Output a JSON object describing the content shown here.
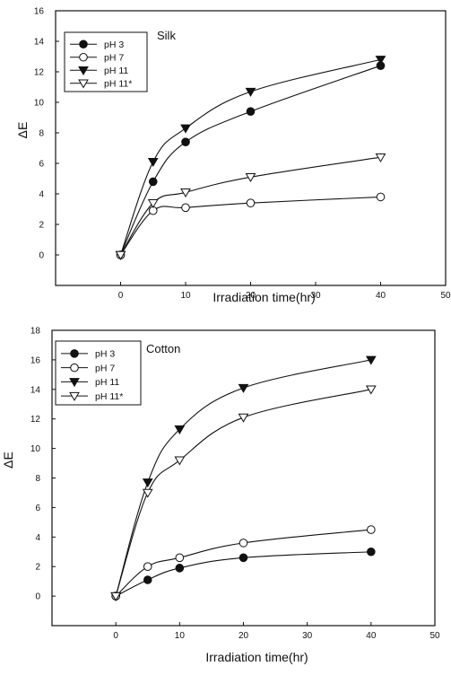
{
  "chart_data": [
    {
      "type": "line",
      "panel_label": "Silk",
      "xlabel": "Irradiation time(hr)",
      "ylabel": "ΔE",
      "xlim": [
        -10,
        50
      ],
      "ylim": [
        -2,
        16
      ],
      "xticks": [
        0,
        10,
        20,
        30,
        40,
        50
      ],
      "yticks": [
        0,
        2,
        4,
        6,
        8,
        10,
        12,
        14,
        16
      ],
      "legend_position": "top-left",
      "series": [
        {
          "name": "pH 3",
          "marker": "filled-circle",
          "x": [
            0,
            5,
            10,
            20,
            40
          ],
          "y": [
            0,
            4.8,
            7.4,
            9.4,
            12.4
          ]
        },
        {
          "name": "pH 7",
          "marker": "open-circle",
          "x": [
            0,
            5,
            10,
            20,
            40
          ],
          "y": [
            0,
            2.9,
            3.1,
            3.4,
            3.8
          ]
        },
        {
          "name": "pH 11",
          "marker": "filled-triangle-down",
          "x": [
            0,
            5,
            10,
            20,
            40
          ],
          "y": [
            0,
            6.1,
            8.3,
            10.7,
            12.8
          ]
        },
        {
          "name": "pH 11*",
          "marker": "open-triangle-down",
          "x": [
            0,
            5,
            10,
            20,
            40
          ],
          "y": [
            0,
            3.4,
            4.1,
            5.1,
            6.4
          ]
        }
      ]
    },
    {
      "type": "line",
      "panel_label": "Cotton",
      "xlabel": "Irradiation time(hr)",
      "ylabel": "ΔE",
      "xlim": [
        -10,
        50
      ],
      "ylim": [
        -2,
        18
      ],
      "xticks": [
        0,
        10,
        20,
        30,
        40,
        50
      ],
      "yticks": [
        0,
        2,
        4,
        6,
        8,
        10,
        12,
        14,
        16,
        18
      ],
      "legend_position": "top-left",
      "series": [
        {
          "name": "pH 3",
          "marker": "filled-circle",
          "x": [
            0,
            5,
            10,
            20,
            40
          ],
          "y": [
            0,
            1.1,
            1.9,
            2.6,
            3.0
          ]
        },
        {
          "name": "pH 7",
          "marker": "open-circle",
          "x": [
            0,
            5,
            10,
            20,
            40
          ],
          "y": [
            0,
            2.0,
            2.6,
            3.6,
            4.5
          ]
        },
        {
          "name": "pH 11",
          "marker": "filled-triangle-down",
          "x": [
            0,
            5,
            10,
            20,
            40
          ],
          "y": [
            0,
            7.7,
            11.3,
            14.1,
            16.0
          ]
        },
        {
          "name": "pH 11*",
          "marker": "open-triangle-down",
          "x": [
            0,
            5,
            10,
            20,
            40
          ],
          "y": [
            0,
            7.0,
            9.2,
            12.1,
            14.0
          ]
        }
      ]
    }
  ]
}
